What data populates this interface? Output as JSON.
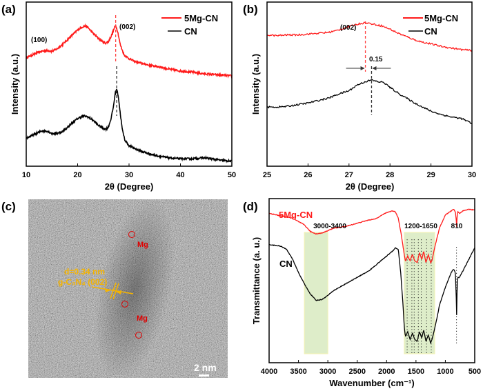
{
  "figure": {
    "panels": [
      "(a)",
      "(b)",
      "(c)",
      "(d)"
    ]
  },
  "colors": {
    "red_series": "#ff1a1a",
    "black_series": "#000000",
    "highlight_band": "#d9ebc0",
    "tem_annotation": "#f5b400",
    "mg_marker": "#e00000"
  },
  "chart_data": [
    {
      "panel": "(a)",
      "type": "line",
      "title": "",
      "xlabel": "2θ (Degree)",
      "ylabel": "Intensity (a.u.)",
      "xlim": [
        10,
        50
      ],
      "ylim": [
        0,
        1
      ],
      "xticks": [
        10,
        20,
        30,
        40,
        50
      ],
      "yticks": [],
      "legend": {
        "placement": "top-right",
        "entries": [
          "5Mg-CN",
          "CN"
        ]
      },
      "annotations": [
        {
          "text": "(100)",
          "x": 13.5
        },
        {
          "text": "(002)",
          "x": 27.4
        }
      ],
      "reference_lines": [
        {
          "x": 27.4,
          "series": "5Mg-CN",
          "style": "dashed"
        },
        {
          "x": 27.6,
          "series": "CN",
          "style": "dashed"
        }
      ],
      "series": [
        {
          "name": "5Mg-CN",
          "x": [
            10,
            11,
            12,
            13,
            14,
            15,
            16,
            17,
            18,
            19,
            20,
            21,
            21.5,
            22,
            23,
            24,
            25,
            25.5,
            26,
            26.5,
            27,
            27.4,
            27.8,
            28.3,
            29,
            30,
            31,
            32,
            34,
            36,
            38,
            40,
            42,
            44,
            46,
            48,
            50
          ],
          "y": [
            0.66,
            0.675,
            0.69,
            0.7,
            0.705,
            0.7,
            0.715,
            0.74,
            0.77,
            0.8,
            0.83,
            0.85,
            0.855,
            0.845,
            0.81,
            0.78,
            0.755,
            0.75,
            0.76,
            0.79,
            0.83,
            0.86,
            0.82,
            0.74,
            0.68,
            0.655,
            0.64,
            0.63,
            0.615,
            0.605,
            0.59,
            0.58,
            0.575,
            0.565,
            0.56,
            0.555,
            0.55
          ]
        },
        {
          "name": "CN",
          "x": [
            10,
            11,
            12,
            13,
            14,
            15,
            16,
            17,
            18,
            19,
            20,
            21,
            21.5,
            22,
            23,
            24,
            25,
            25.5,
            26,
            26.5,
            27,
            27.3,
            27.6,
            27.9,
            28.3,
            28.7,
            29.2,
            30,
            31,
            32,
            34,
            36,
            38,
            40,
            42,
            44,
            45,
            46,
            48,
            50
          ],
          "y": [
            0.17,
            0.185,
            0.2,
            0.215,
            0.215,
            0.2,
            0.2,
            0.21,
            0.235,
            0.265,
            0.29,
            0.305,
            0.305,
            0.3,
            0.28,
            0.25,
            0.23,
            0.225,
            0.24,
            0.29,
            0.37,
            0.44,
            0.47,
            0.43,
            0.32,
            0.22,
            0.16,
            0.125,
            0.11,
            0.095,
            0.075,
            0.06,
            0.05,
            0.045,
            0.045,
            0.05,
            0.05,
            0.045,
            0.035,
            0.03
          ]
        }
      ]
    },
    {
      "panel": "(b)",
      "type": "line",
      "title": "",
      "xlabel": "2θ (Degree)",
      "ylabel": "Intensity (a.u.)",
      "xlim": [
        25,
        30
      ],
      "ylim": [
        0,
        1
      ],
      "xticks": [
        25,
        26,
        27,
        28,
        29,
        30
      ],
      "yticks": [],
      "legend": {
        "placement": "top-right",
        "entries": [
          "5Mg-CN",
          "CN"
        ]
      },
      "annotations": [
        {
          "text": "(002)",
          "x": 27.1
        },
        {
          "text": "0.15",
          "x": 27.8
        }
      ],
      "reference_lines": [
        {
          "x": 27.4,
          "series": "5Mg-CN",
          "style": "dashed"
        },
        {
          "x": 27.55,
          "series": "CN",
          "style": "dashed"
        }
      ],
      "shift": {
        "value": 0.15,
        "from": 27.4,
        "to": 27.55
      },
      "series": [
        {
          "name": "5Mg-CN",
          "x": [
            25,
            25.25,
            25.5,
            25.75,
            26,
            26.25,
            26.5,
            26.75,
            27,
            27.2,
            27.4,
            27.6,
            27.8,
            28,
            28.2,
            28.4,
            28.6,
            28.8,
            29,
            29.25,
            29.5,
            29.75,
            30
          ],
          "y": [
            0.8,
            0.795,
            0.8,
            0.8,
            0.805,
            0.81,
            0.815,
            0.83,
            0.85,
            0.865,
            0.875,
            0.865,
            0.855,
            0.835,
            0.81,
            0.79,
            0.77,
            0.755,
            0.745,
            0.73,
            0.72,
            0.71,
            0.705
          ]
        },
        {
          "name": "CN",
          "x": [
            25,
            25.25,
            25.5,
            25.75,
            26,
            26.25,
            26.5,
            26.75,
            27,
            27.2,
            27.4,
            27.55,
            27.7,
            27.85,
            28,
            28.2,
            28.4,
            28.6,
            28.8,
            29,
            29.25,
            29.5,
            29.75,
            30
          ],
          "y": [
            0.36,
            0.36,
            0.365,
            0.375,
            0.385,
            0.4,
            0.415,
            0.44,
            0.46,
            0.495,
            0.515,
            0.525,
            0.515,
            0.51,
            0.48,
            0.445,
            0.415,
            0.385,
            0.36,
            0.335,
            0.315,
            0.3,
            0.29,
            0.26
          ]
        }
      ]
    },
    {
      "panel": "(d)",
      "type": "line",
      "title": "",
      "xlabel": "Wavenumber (cm⁻¹)",
      "ylabel": "Transmittance (a. u.)",
      "xlim": [
        4000,
        500
      ],
      "ylim": [
        0,
        1
      ],
      "xticks": [
        4000,
        3500,
        3000,
        2500,
        2000,
        1500,
        1000,
        500
      ],
      "yticks": [],
      "legend": {
        "placement": "inline",
        "entries": [
          "5Mg-CN",
          "CN"
        ]
      },
      "highlight_bands": [
        {
          "label": "3000-3400",
          "from": 3400,
          "to": 3000
        },
        {
          "label": "1200-1650",
          "from": 1700,
          "to": 1180
        }
      ],
      "annotations": [
        {
          "text": "810",
          "x": 810
        }
      ],
      "dotted_lines": [
        1650,
        1570,
        1530,
        1460,
        1410,
        1320,
        1240,
        810
      ],
      "series": [
        {
          "name": "5Mg-CN",
          "x": [
            4000,
            3800,
            3600,
            3400,
            3300,
            3200,
            3100,
            3000,
            2900,
            2700,
            2500,
            2300,
            2200,
            2100,
            2000,
            1900,
            1850,
            1800,
            1750,
            1700,
            1680,
            1640,
            1600,
            1560,
            1520,
            1480,
            1440,
            1400,
            1370,
            1330,
            1290,
            1250,
            1230,
            1200,
            1150,
            1100,
            1000,
            900,
            860,
            830,
            815,
            810,
            805,
            790,
            760,
            700,
            600,
            500
          ],
          "y": [
            0.91,
            0.895,
            0.88,
            0.84,
            0.8,
            0.785,
            0.79,
            0.805,
            0.82,
            0.83,
            0.85,
            0.87,
            0.875,
            0.895,
            0.915,
            0.925,
            0.92,
            0.88,
            0.78,
            0.66,
            0.62,
            0.65,
            0.62,
            0.66,
            0.62,
            0.61,
            0.67,
            0.63,
            0.68,
            0.61,
            0.66,
            0.61,
            0.62,
            0.67,
            0.75,
            0.82,
            0.9,
            0.925,
            0.935,
            0.92,
            0.87,
            0.8,
            0.87,
            0.92,
            0.91,
            0.925,
            0.935,
            0.93
          ]
        },
        {
          "name": "CN",
          "x": [
            4000,
            3900,
            3800,
            3700,
            3600,
            3500,
            3400,
            3300,
            3200,
            3100,
            3000,
            2900,
            2700,
            2500,
            2300,
            2200,
            2100,
            2000,
            1900,
            1850,
            1800,
            1760,
            1720,
            1700,
            1680,
            1640,
            1600,
            1560,
            1520,
            1480,
            1440,
            1400,
            1370,
            1330,
            1290,
            1250,
            1230,
            1200,
            1150,
            1100,
            1000,
            900,
            860,
            830,
            815,
            810,
            805,
            790,
            760,
            700,
            600,
            500
          ],
          "y": [
            0.72,
            0.715,
            0.71,
            0.69,
            0.63,
            0.55,
            0.48,
            0.42,
            0.38,
            0.385,
            0.41,
            0.44,
            0.48,
            0.52,
            0.56,
            0.59,
            0.62,
            0.65,
            0.68,
            0.7,
            0.69,
            0.55,
            0.35,
            0.22,
            0.16,
            0.19,
            0.14,
            0.18,
            0.14,
            0.13,
            0.19,
            0.15,
            0.2,
            0.13,
            0.17,
            0.12,
            0.14,
            0.18,
            0.26,
            0.35,
            0.46,
            0.55,
            0.57,
            0.55,
            0.4,
            0.22,
            0.4,
            0.52,
            0.52,
            0.56,
            0.63,
            0.7
          ]
        }
      ]
    }
  ],
  "tem_panel": {
    "panel": "(c)",
    "lattice_text_line1": "d=0.34 nm",
    "lattice_text_line2": "g-C₃N₄ (002)",
    "mg_labels": [
      "Mg",
      "Mg"
    ],
    "scale_bar_label": "2 nm"
  }
}
